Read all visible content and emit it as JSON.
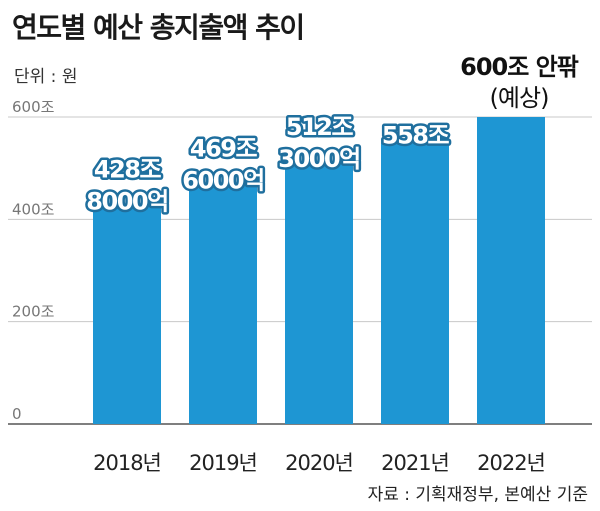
{
  "chart_data": {
    "type": "bar",
    "title": "연도별 예산 총지출액 추이",
    "unit_label": "단위 : 원",
    "categories": [
      "2018년",
      "2019년",
      "2020년",
      "2021년",
      "2022년"
    ],
    "values": [
      428.8,
      469.6,
      512.3,
      558,
      600
    ],
    "data_labels": [
      [
        "428조",
        "8000억"
      ],
      [
        "469조",
        "6000억"
      ],
      [
        "512조",
        "3000억"
      ],
      [
        "558조"
      ],
      []
    ],
    "callout": {
      "line1": "600조 안팎",
      "line2": "(예상)"
    },
    "y_ticks": [
      {
        "value": 0,
        "label": "0"
      },
      {
        "value": 200,
        "label": "200조"
      },
      {
        "value": 400,
        "label": "400조"
      },
      {
        "value": 600,
        "label": "600조"
      }
    ],
    "ylim": [
      0,
      600
    ],
    "grid": true,
    "bar_color": "#1e96d3",
    "source": "자료 : 기획재정부, 본예산 기준"
  }
}
